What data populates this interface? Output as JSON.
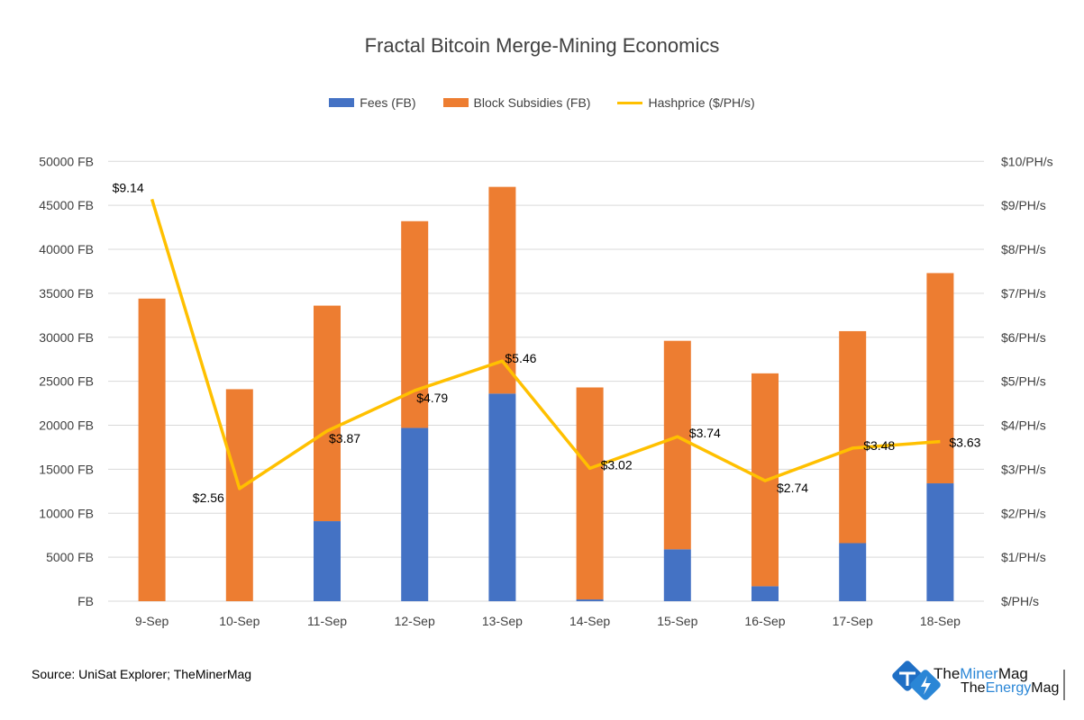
{
  "chart_data": {
    "type": "bar",
    "title": "Fractal Bitcoin Merge-Mining Economics",
    "categories": [
      "9-Sep",
      "10-Sep",
      "11-Sep",
      "12-Sep",
      "13-Sep",
      "14-Sep",
      "15-Sep",
      "16-Sep",
      "17-Sep",
      "18-Sep"
    ],
    "series": [
      {
        "name": "Fees (FB)",
        "type": "stacked-bar",
        "axis": "left",
        "color": "#4472C4",
        "values": [
          0,
          0,
          9100,
          19700,
          23600,
          200,
          5900,
          1700,
          6600,
          13400
        ]
      },
      {
        "name": "Block Subsidies (FB)",
        "type": "stacked-bar",
        "axis": "left",
        "color": "#ED7D31",
        "values": [
          34400,
          24100,
          24500,
          23500,
          23500,
          24100,
          23700,
          24200,
          24100,
          23900
        ]
      },
      {
        "name": "Hashprice ($/PH/s)",
        "type": "line",
        "axis": "right",
        "color": "#FFC000",
        "values": [
          9.14,
          2.56,
          3.87,
          4.79,
          5.46,
          3.02,
          3.74,
          2.74,
          3.48,
          3.63
        ],
        "labels": [
          "$9.14",
          "$2.56",
          "$3.87",
          "$4.79",
          "$5.46",
          "$3.02",
          "$3.74",
          "$2.74",
          "$3.48",
          "$3.63"
        ]
      }
    ],
    "y_left": {
      "lim": [
        0,
        50000
      ],
      "ticks": [
        "FB",
        "5000 FB",
        "10000 FB",
        "15000 FB",
        "20000 FB",
        "25000 FB",
        "30000 FB",
        "35000 FB",
        "40000 FB",
        "45000 FB",
        "50000 FB"
      ]
    },
    "y_right": {
      "lim": [
        0,
        10
      ],
      "ticks": [
        "$/PH/s",
        "$1/PH/s",
        "$2/PH/s",
        "$3/PH/s",
        "$4/PH/s",
        "$5/PH/s",
        "$6/PH/s",
        "$7/PH/s",
        "$8/PH/s",
        "$9/PH/s",
        "$10/PH/s"
      ]
    },
    "grid": true,
    "legend": "top"
  },
  "source": "Source: UniSat Explorer; TheMinerMag",
  "logo": {
    "text1": "TheMinerMag",
    "text2": "TheEnergyMag"
  }
}
